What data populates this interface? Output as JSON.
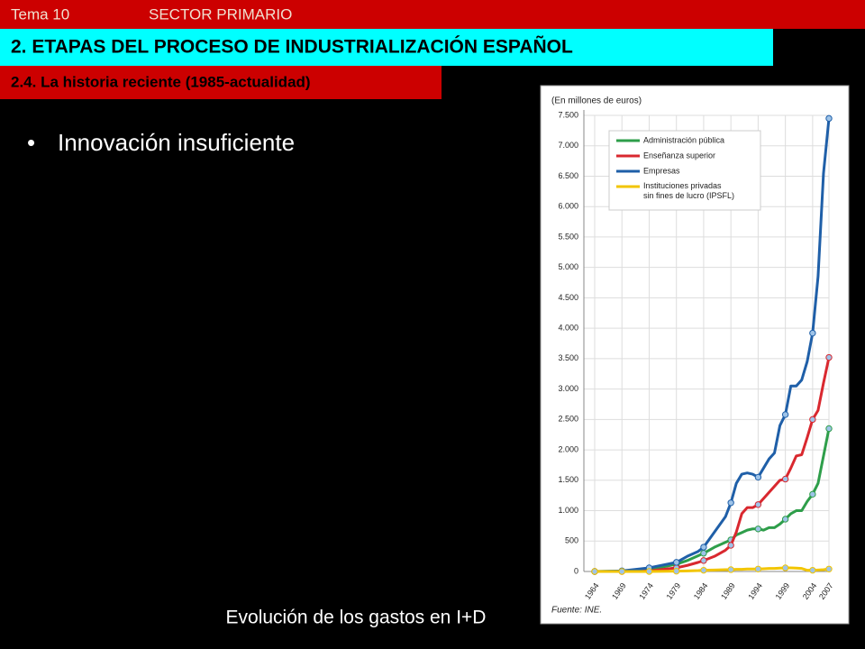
{
  "slide": {
    "topic": "Tema 10",
    "sector": "SECTOR PRIMARIO",
    "section": "2. ETAPAS DEL PROCESO DE INDUSTRIALIZACIÓN ESPAÑOL",
    "subsection": "2.4. La historia reciente (1985-actualidad)",
    "bullet": "Innovación insuficiente",
    "caption": "Evolución de los gastos en I+D"
  },
  "chart_data": {
    "type": "line",
    "y_label": "(En millones de euros)",
    "source": "Fuente: INE.",
    "x": [
      1964,
      1969,
      1974,
      1979,
      1981,
      1983,
      1984,
      1986,
      1988,
      1989,
      1990,
      1991,
      1992,
      1993,
      1994,
      1995,
      1996,
      1997,
      1998,
      1999,
      2000,
      2001,
      2002,
      2003,
      2004,
      2005,
      2006,
      2007
    ],
    "xlim": [
      1964,
      2007
    ],
    "xticks": [
      1964,
      1969,
      1974,
      1979,
      1984,
      1989,
      1994,
      1999,
      2004,
      2007
    ],
    "ylim": [
      0,
      7500
    ],
    "yticks": [
      0,
      500,
      {
        "value": 1000,
        "label": "1.000"
      },
      {
        "value": 1500,
        "label": "1.500"
      },
      {
        "value": 2000,
        "label": "2.000"
      },
      {
        "value": 2500,
        "label": "2.500"
      },
      {
        "value": 3000,
        "label": "3.000"
      },
      {
        "value": 3500,
        "label": "3.500"
      },
      {
        "value": 4000,
        "label": "4.000"
      },
      {
        "value": 4500,
        "label": "4.500"
      },
      {
        "value": 5000,
        "label": "5.000"
      },
      {
        "value": 5500,
        "label": "5.500"
      },
      {
        "value": 6000,
        "label": "6.000"
      },
      {
        "value": 6500,
        "label": "6.500"
      },
      {
        "value": 7000,
        "label": "7.000"
      },
      {
        "value": 7500,
        "label": "7.500"
      }
    ],
    "grid": true,
    "series": [
      {
        "name": "Administración pública",
        "color": "#2e9e4a",
        "values": [
          0,
          5,
          30,
          120,
          180,
          260,
          300,
          400,
          480,
          520,
          600,
          640,
          680,
          700,
          700,
          680,
          720,
          720,
          780,
          860,
          950,
          1000,
          1000,
          1150,
          1270,
          1450,
          1900,
          2350
        ]
      },
      {
        "name": "Enseñanza superior",
        "color": "#d9282f",
        "values": [
          0,
          0,
          10,
          60,
          100,
          150,
          180,
          250,
          350,
          430,
          650,
          950,
          1050,
          1050,
          1100,
          1200,
          1300,
          1400,
          1500,
          1520,
          1700,
          1900,
          1920,
          2200,
          2500,
          2650,
          3100,
          3520
        ]
      },
      {
        "name": "Empresas",
        "color": "#1f5fa8",
        "values": [
          0,
          10,
          60,
          150,
          250,
          330,
          400,
          650,
          900,
          1130,
          1450,
          1600,
          1620,
          1600,
          1550,
          1700,
          1850,
          1950,
          2400,
          2580,
          3050,
          3050,
          3150,
          3450,
          3920,
          4850,
          6550,
          7450
        ]
      },
      {
        "name": "Instituciones privadas sin fines de lucro (IPSFL)",
        "color": "#f2c500",
        "values": [
          0,
          0,
          0,
          5,
          10,
          15,
          20,
          25,
          30,
          30,
          35,
          35,
          40,
          40,
          40,
          45,
          50,
          50,
          55,
          60,
          60,
          55,
          50,
          20,
          20,
          25,
          30,
          40
        ]
      }
    ]
  }
}
